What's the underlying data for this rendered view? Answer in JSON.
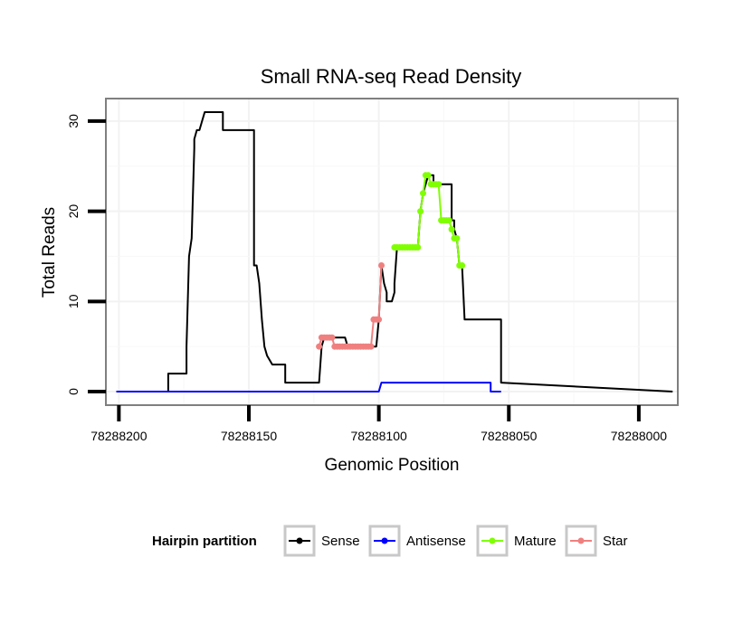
{
  "chart_data": {
    "type": "line",
    "title": "Small RNA-seq Read Density",
    "xlabel": "Genomic Position",
    "ylabel": "Total Reads",
    "xlim": [
      78288205,
      78287985
    ],
    "x_reversed": true,
    "ylim": [
      -1.5,
      32.5
    ],
    "xticks": [
      78288200,
      78288150,
      78288100,
      78288050,
      78288000
    ],
    "xtick_labels": [
      "78288200",
      "78288150",
      "78288100",
      "78288050",
      "78288000"
    ],
    "yticks": [
      0,
      10,
      20,
      30
    ],
    "ytick_labels": [
      "0",
      "10",
      "20",
      "30"
    ],
    "grid": true,
    "legend": {
      "title": "Hairpin partition",
      "position": "bottom",
      "entries": [
        "Sense",
        "Antisense",
        "Mature",
        "Star"
      ]
    },
    "series": [
      {
        "name": "Sense",
        "color": "#000000",
        "markers": false,
        "x": [
          78288201,
          78288181,
          78288181,
          78288174,
          78288174,
          78288173,
          78288173,
          78288172,
          78288171,
          78288171,
          78288170,
          78288169,
          78288168,
          78288167,
          78288166,
          78288160,
          78288160,
          78288156,
          78288156,
          78288148,
          78288148,
          78288147,
          78288146,
          78288145,
          78288144,
          78288143,
          78288141,
          78288141,
          78288136,
          78288136,
          78288123,
          78288123,
          78288122,
          78288121,
          78288121,
          78288113,
          78288113,
          78288112,
          78288110,
          78288109,
          78288109,
          78288108,
          78288107,
          78288106,
          78288105,
          78288103,
          78288103,
          78288101,
          78288100,
          78288100,
          78288099,
          78288098,
          78288097,
          78288097,
          78288096,
          78288095,
          78288094,
          78288094,
          78288093,
          78288092,
          78288085,
          78288085,
          78288084,
          78288083,
          78288081,
          78288079,
          78288079,
          78288076,
          78288076,
          78288072,
          78288072,
          78288071,
          78288071,
          78288070,
          78288070,
          78288069,
          78288068,
          78288068,
          78288067,
          78288057,
          78288057,
          78288055,
          78288053,
          78288053,
          78287987
        ],
        "y": [
          0,
          0,
          2,
          2,
          5,
          15,
          15,
          17,
          27,
          28,
          29,
          29,
          30,
          31,
          31,
          31,
          29,
          29,
          29,
          29,
          14,
          14,
          12,
          8,
          5,
          4,
          3,
          3,
          3,
          1,
          1,
          1,
          5,
          6,
          6,
          6,
          6,
          5,
          5,
          5,
          5,
          5,
          5,
          5,
          5,
          5,
          5,
          5,
          8,
          8,
          14,
          12,
          11,
          10,
          10,
          10,
          11,
          12,
          16,
          16,
          16,
          16,
          20,
          22,
          24,
          24,
          23,
          23,
          23,
          23,
          19,
          19,
          18,
          17,
          17,
          14,
          14,
          14,
          8,
          8,
          8,
          8,
          8,
          1,
          0
        ]
      },
      {
        "name": "Antisense",
        "color": "#0000ff",
        "markers": false,
        "x": [
          78288201,
          78288100,
          78288099,
          78288079,
          78288079,
          78288078,
          78288057,
          78288057,
          78288053
        ],
        "y": [
          0,
          0,
          1,
          1,
          1,
          1,
          1,
          0,
          0
        ]
      },
      {
        "name": "Mature",
        "color": "#7fff00",
        "markers": true,
        "x": [
          78288094,
          78288093,
          78288092,
          78288091,
          78288090,
          78288089,
          78288088,
          78288087,
          78288086,
          78288085,
          78288084,
          78288083,
          78288082,
          78288081,
          78288080,
          78288079,
          78288078,
          78288077,
          78288076,
          78288075,
          78288074,
          78288073,
          78288072,
          78288071,
          78288070,
          78288069,
          78288068
        ],
        "y": [
          16,
          16,
          16,
          16,
          16,
          16,
          16,
          16,
          16,
          16,
          20,
          22,
          24,
          24,
          23,
          23,
          23,
          23,
          19,
          19,
          19,
          19,
          18,
          17,
          17,
          14,
          14
        ]
      },
      {
        "name": "Star",
        "color": "#f08080",
        "markers": true,
        "x": [
          78288123,
          78288122,
          78288121,
          78288120,
          78288119,
          78288118,
          78288117,
          78288116,
          78288115,
          78288114,
          78288113,
          78288112,
          78288111,
          78288110,
          78288109,
          78288108,
          78288107,
          78288106,
          78288105,
          78288104,
          78288103,
          78288102,
          78288101,
          78288100,
          78288099
        ],
        "y": [
          5,
          6,
          6,
          6,
          6,
          6,
          5,
          5,
          5,
          5,
          5,
          5,
          5,
          5,
          5,
          5,
          5,
          5,
          5,
          5,
          5,
          8,
          8,
          8,
          14
        ]
      }
    ]
  }
}
